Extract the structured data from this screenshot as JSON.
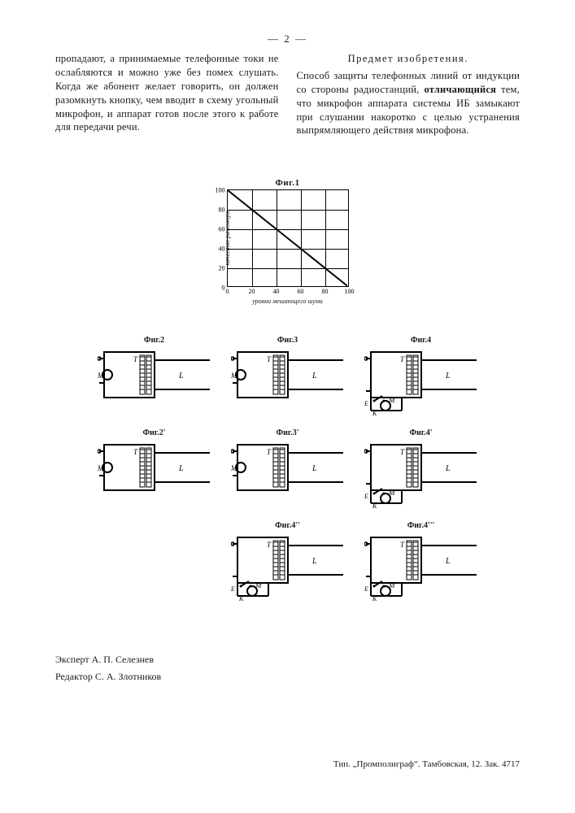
{
  "page_number": "— 2 —",
  "left_column": "пропадают, а принимаемые телефонные токи не ослабляются и можно уже без помех слушать. Когда же абонент желает говорить, он должен разомкнуть кнопку, чем вводит в схему угольный микрофон, и аппарат готов после этого к работе для передачи речи.",
  "right_heading": "Предмет изобретения.",
  "right_column_pre": "Способ защиты телефонных линий от индукции со стороны радиостанций, ",
  "right_column_bold": "отличающийся",
  "right_column_post": " тем, что микрофон аппарата системы ИБ замыкают при слушании накоротко с целью устранения выпрямляющего действия микрофона.",
  "fig1": {
    "title": "Фиг.1",
    "x_ticks": [
      0,
      20,
      40,
      60,
      80,
      100
    ],
    "y_ticks": [
      0,
      20,
      40,
      60,
      80,
      100
    ],
    "xlim": [
      0,
      100
    ],
    "ylim": [
      0,
      100
    ],
    "data_points": [
      [
        0,
        100
      ],
      [
        20,
        80
      ],
      [
        40,
        60
      ],
      [
        60,
        40
      ],
      [
        80,
        20
      ],
      [
        100,
        0
      ]
    ],
    "line_color": "#000000",
    "line_width": 2,
    "grid_color": "#000000",
    "x_label": "уровни мешающего шума",
    "y_label_left": "качество разговора",
    "y_label_right": ""
  },
  "schematics": [
    {
      "title": "Фиг.2",
      "row": 1,
      "col": 1,
      "M_pos": "left-mid",
      "switch": false
    },
    {
      "title": "Фиг.3",
      "row": 1,
      "col": 2,
      "M_pos": "left-mid",
      "switch": false
    },
    {
      "title": "Фиг.4",
      "row": 1,
      "col": 3,
      "M_pos": "bottom",
      "switch": true
    },
    {
      "title": "Фиг.2'",
      "row": 2,
      "col": 1,
      "M_pos": "left-mid",
      "switch": false
    },
    {
      "title": "Фиг.3'",
      "row": 2,
      "col": 2,
      "M_pos": "left-mid",
      "switch": false
    },
    {
      "title": "Фиг.4'",
      "row": 2,
      "col": 3,
      "M_pos": "bottom",
      "switch": true
    },
    {
      "title": "Фиг.4''",
      "row": 3,
      "col": 2,
      "M_pos": "bottom",
      "switch": true
    },
    {
      "title": "Фиг.4'''",
      "row": 3,
      "col": 3,
      "M_pos": "bottom",
      "switch": true
    }
  ],
  "schem_labels": {
    "T": "T",
    "M": "M",
    "L": "L",
    "K": "K",
    "E": "E"
  },
  "stroke_color": "#000000",
  "credits_expert": "Эксперт А. П. Селезнев",
  "credits_editor": "Редактор С. А. Злотников",
  "imprint": "Тип. „Промполиграф“. Тамбовская, 12. Зак. 4717",
  "scribble": ""
}
